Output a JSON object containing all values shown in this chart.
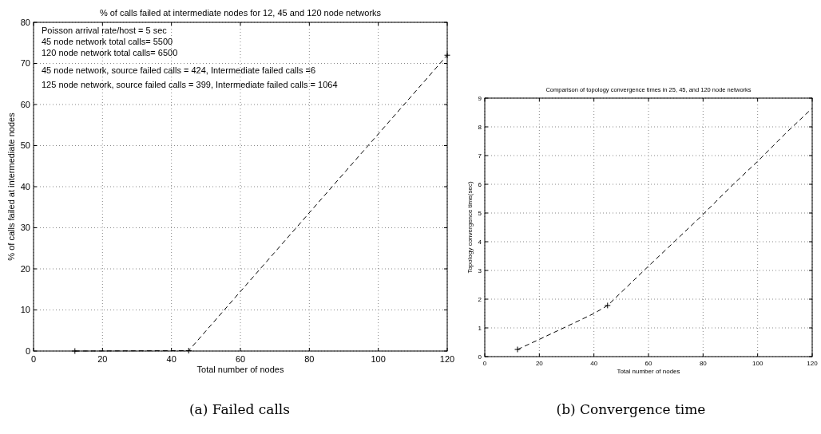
{
  "chart_data": [
    {
      "type": "line",
      "title": "% of calls failed at intermediate nodes for 12, 45 and 120 node networks",
      "xlabel": "Total number of nodes",
      "ylabel": "% of calls failed at intermediate nodes",
      "xlim": [
        0,
        120
      ],
      "xticks": [
        0,
        20,
        40,
        60,
        80,
        100,
        120
      ],
      "ylim": [
        0,
        80
      ],
      "yticks": [
        0,
        10,
        20,
        30,
        40,
        50,
        60,
        70,
        80
      ],
      "grid": true,
      "marker": "cross",
      "line_style": "dashed",
      "series": [
        {
          "color": "#000000",
          "x": [
            12,
            45,
            120
          ],
          "values": [
            0,
            0.1,
            72
          ]
        }
      ],
      "annotations": [
        "Poisson arrival rate/host = 5 sec",
        "45 node network total calls= 5500",
        "120 node network total calls= 6500",
        "45 node network, source failed calls = 424, Intermediate failed calls =6",
        "125 node network, source failed calls = 399, Intermediate failed calls = 1064",
        "(a) Failed calls"
      ]
    },
    {
      "type": "line",
      "title": "Comparison of topology convergence times in 25, 45, and 120 node networks",
      "xlabel": "Total number of nodes",
      "ylabel": "Topology convergence time(sec)",
      "xlim": [
        0,
        120
      ],
      "xticks": [
        0,
        20,
        40,
        60,
        80,
        100,
        120
      ],
      "ylim": [
        0,
        9
      ],
      "yticks": [
        0,
        1,
        2,
        3,
        4,
        5,
        6,
        7,
        8,
        9
      ],
      "grid": true,
      "line_style": "dashed",
      "series": [
        {
          "color": "#000000",
          "x": [
            12,
            20,
            30,
            40,
            45,
            60,
            70,
            80,
            90,
            100,
            110,
            120
          ],
          "values": [
            0.25,
            0.6,
            1.05,
            1.5,
            1.78,
            3.15,
            4.05,
            4.95,
            5.9,
            6.8,
            7.75,
            8.65
          ]
        },
        {
          "type": "scatter",
          "color": "#000000",
          "marker": "cross",
          "x": [
            12,
            45
          ],
          "values": [
            0.25,
            1.78
          ]
        }
      ],
      "annotations": [
        "(b) Convergence time"
      ]
    }
  ]
}
